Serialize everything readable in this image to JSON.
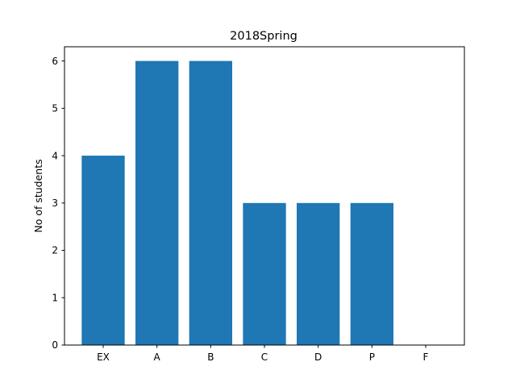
{
  "chart_data": {
    "type": "bar",
    "title": "2018Spring",
    "xlabel": "",
    "ylabel": "No of students",
    "categories": [
      "EX",
      "A",
      "B",
      "C",
      "D",
      "P",
      "F"
    ],
    "values": [
      4,
      6,
      6,
      3,
      3,
      3,
      0
    ],
    "ylim": [
      0,
      6.3
    ],
    "yticks": [
      0,
      1,
      2,
      3,
      4,
      5,
      6
    ],
    "bar_color": "#1f77b4",
    "grid": false,
    "legend": "none"
  }
}
